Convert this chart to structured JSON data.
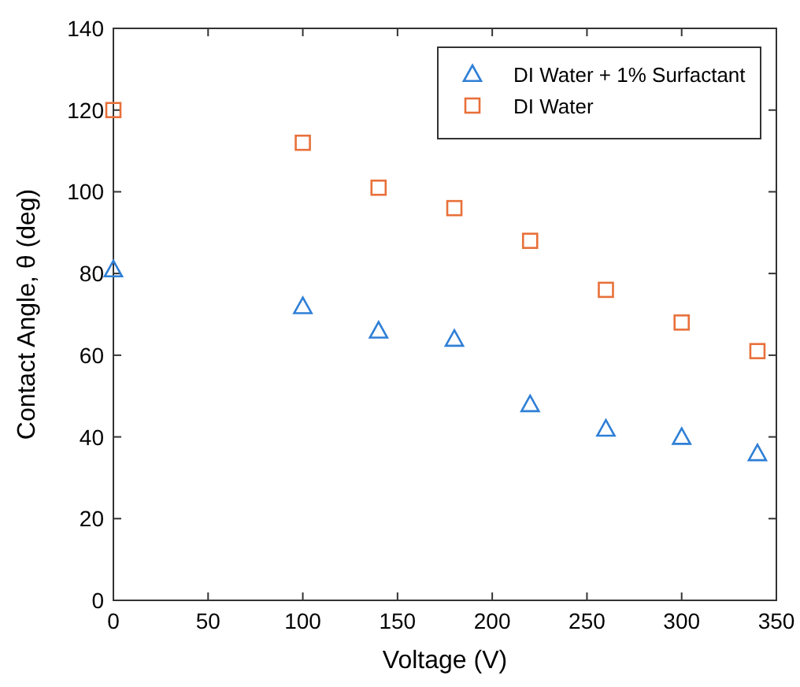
{
  "chart_data": {
    "type": "scatter",
    "xlabel": "Voltage (V)",
    "ylabel": "Contact Angle, θ (deg)",
    "x": [
      0,
      100,
      140,
      180,
      220,
      260,
      300,
      340
    ],
    "series": [
      {
        "name": "DI Water + 1% Surfactant",
        "color": "#2f7fd6",
        "marker": "triangle",
        "values": [
          81,
          72,
          66,
          64,
          48,
          42,
          40,
          36
        ]
      },
      {
        "name": "DI Water",
        "color": "#e8703a",
        "marker": "square",
        "values": [
          120,
          112,
          101,
          96,
          88,
          76,
          68,
          61
        ]
      }
    ],
    "xlim": [
      0,
      350
    ],
    "xticks": [
      0,
      50,
      100,
      150,
      200,
      250,
      300,
      350
    ],
    "ylim": [
      0,
      140
    ],
    "yticks": [
      0,
      20,
      40,
      60,
      80,
      100,
      120,
      140
    ],
    "grid": false,
    "legend": "top right"
  }
}
